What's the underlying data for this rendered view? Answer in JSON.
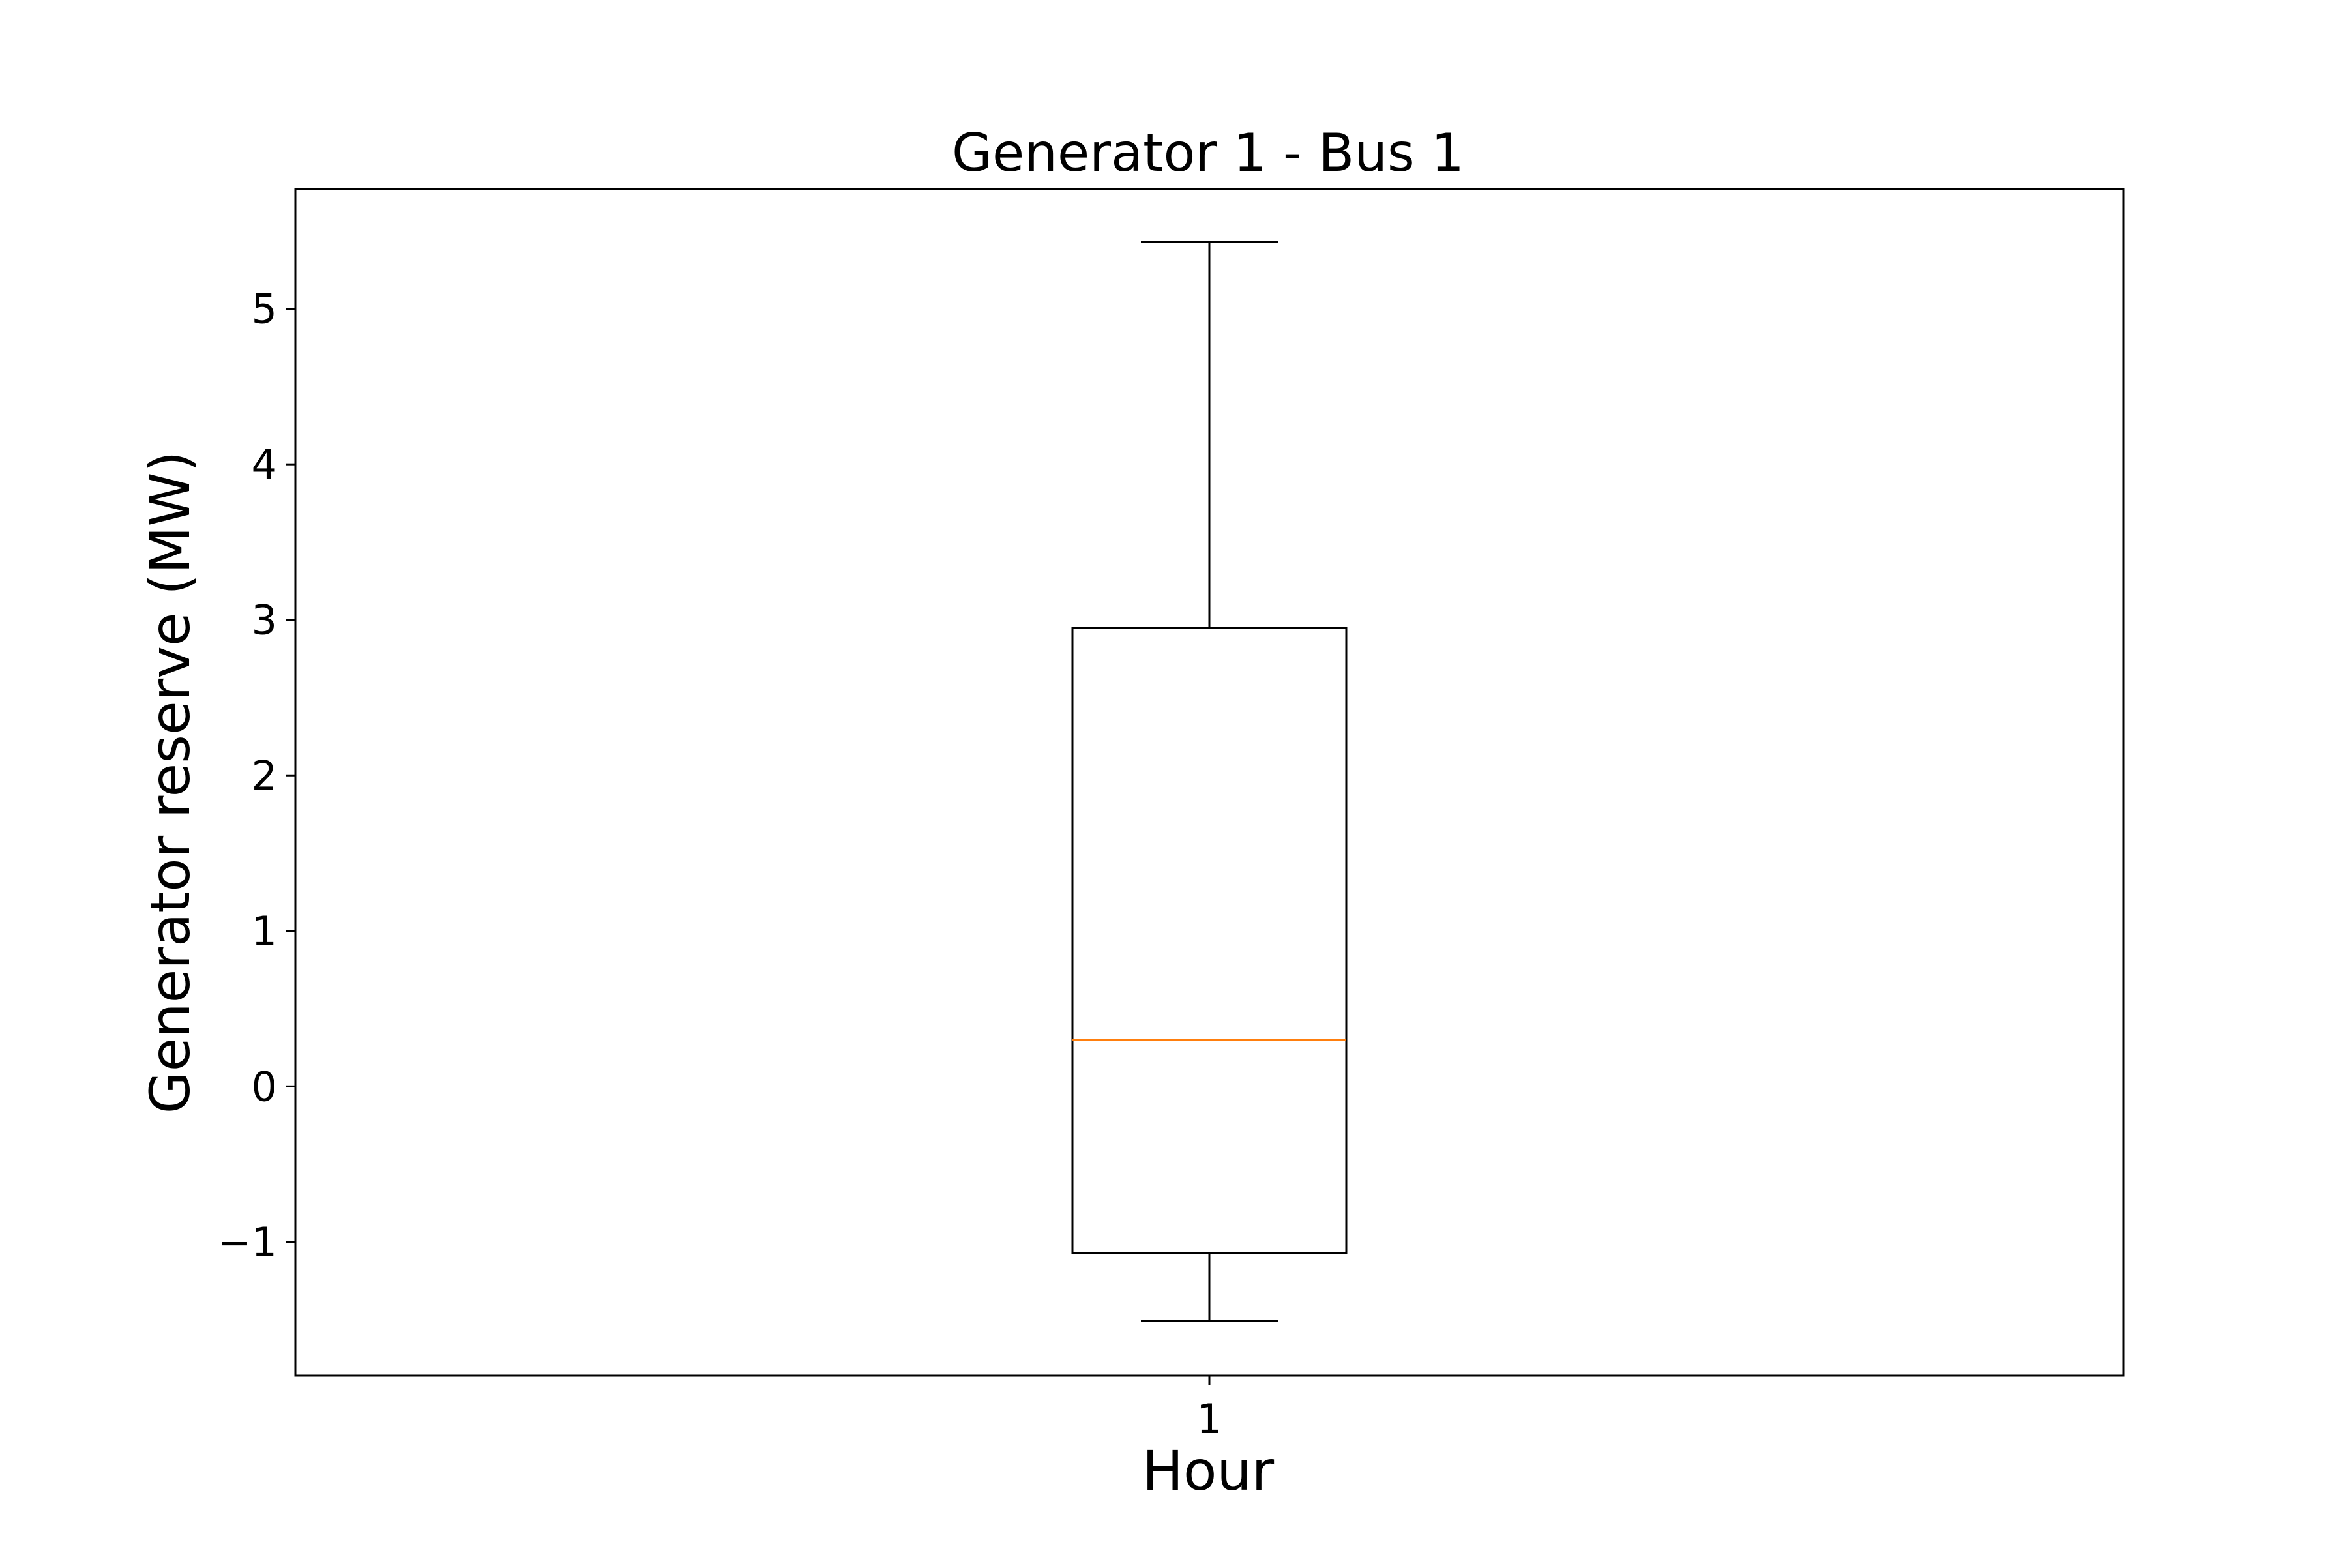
{
  "chart_data": {
    "type": "box",
    "title": "Generator 1 - Bus 1",
    "xlabel": "Hour",
    "ylabel": "Generator reserve (MW)",
    "categories": [
      "1"
    ],
    "boxes": [
      {
        "category": "1",
        "whisker_low": -1.51,
        "q1": -1.07,
        "median": 0.3,
        "q3": 2.95,
        "whisker_high": 5.43
      }
    ],
    "ylim": [
      -1.86,
      5.77
    ],
    "yticks": [
      -1,
      0,
      1,
      2,
      3,
      4,
      5
    ],
    "ytick_labels": [
      "−1",
      "0",
      "1",
      "2",
      "3",
      "4",
      "5"
    ],
    "grid": false,
    "colors": {
      "box": "#000000",
      "median": "#ff7f0e",
      "axes": "#000000"
    }
  }
}
